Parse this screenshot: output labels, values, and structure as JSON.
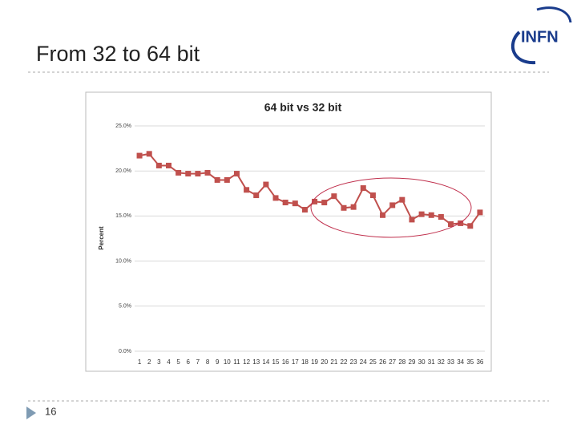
{
  "slide": {
    "title": "From 32 to 64 bit",
    "page_number": "16",
    "logo": "INFN"
  },
  "chart_data": {
    "type": "line",
    "title": "64 bit vs 32 bit",
    "y_label": "Percent",
    "categories": [
      "1",
      "2",
      "3",
      "4",
      "5",
      "6",
      "7",
      "8",
      "9",
      "10",
      "11",
      "12",
      "13",
      "14",
      "15",
      "16",
      "17",
      "18",
      "19",
      "20",
      "21",
      "22",
      "23",
      "24",
      "25",
      "26",
      "27",
      "28",
      "29",
      "30",
      "31",
      "32",
      "33",
      "34",
      "35",
      "36"
    ],
    "series": [
      {
        "name": "64 bit vs 32 bit",
        "color": "#c0504d",
        "values": [
          21.7,
          21.9,
          20.6,
          20.6,
          19.8,
          19.7,
          19.7,
          19.8,
          19.0,
          19.0,
          19.7,
          17.9,
          17.3,
          18.5,
          17.0,
          16.5,
          16.4,
          15.7,
          16.6,
          16.5,
          17.2,
          15.9,
          16.0,
          18.1,
          17.3,
          15.1,
          16.2,
          16.8,
          14.6,
          15.2,
          15.1,
          14.9,
          14.1,
          14.2,
          13.9,
          15.4
        ]
      }
    ],
    "ylim": [
      0,
      25
    ],
    "yticks": [
      {
        "value": 0,
        "label": "0.0%"
      },
      {
        "value": 5,
        "label": "5.0%"
      },
      {
        "value": 10,
        "label": "10.0%"
      },
      {
        "value": 15,
        "label": "15.0%"
      },
      {
        "value": 20,
        "label": "20.0%"
      },
      {
        "value": 25,
        "label": "25.0%"
      }
    ],
    "grid": true
  }
}
